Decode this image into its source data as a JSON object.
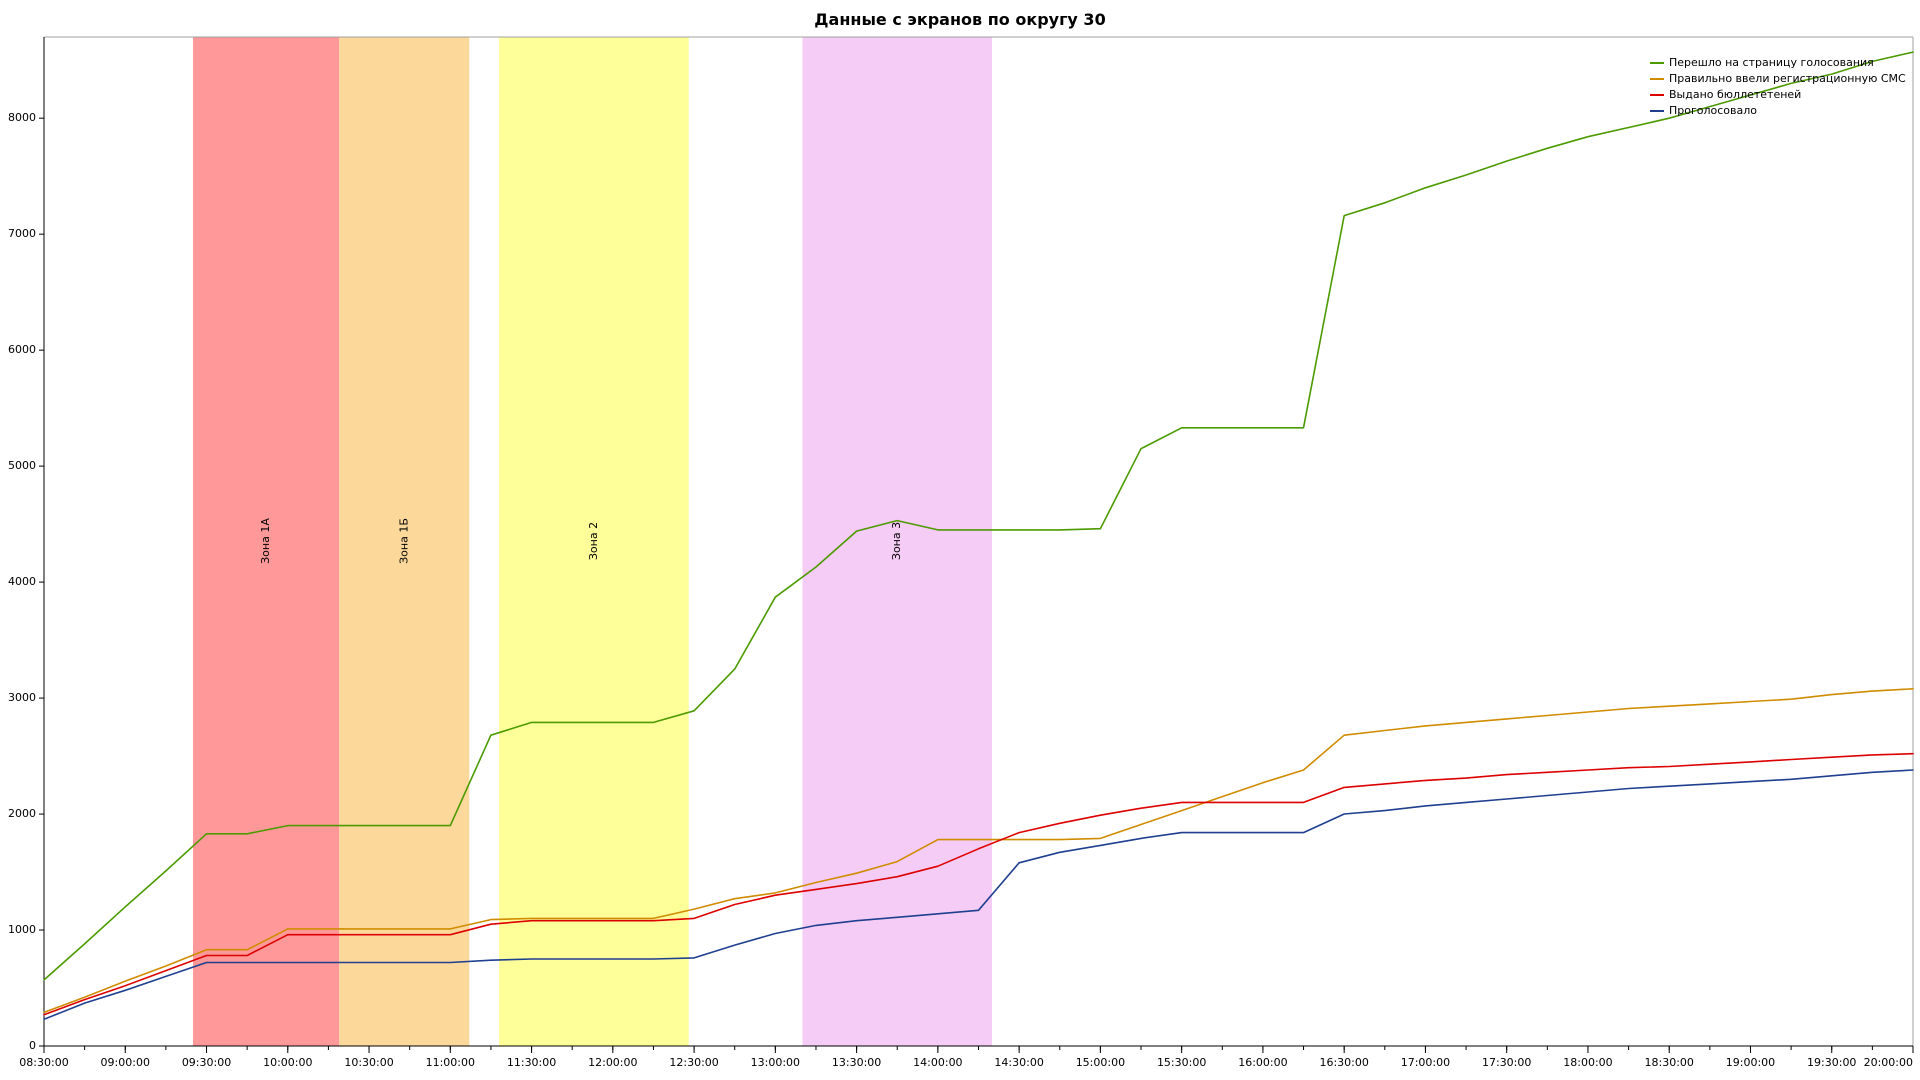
{
  "chart_data": {
    "type": "line",
    "title": "Данные с экранов по округу 30",
    "xlabel": "",
    "ylabel": "",
    "x_time_range": [
      "08:30:00",
      "20:00:00"
    ],
    "x_ticks": [
      "08:30:00",
      "09:00:00",
      "09:30:00",
      "10:00:00",
      "10:30:00",
      "11:00:00",
      "11:30:00",
      "12:00:00",
      "12:30:00",
      "13:00:00",
      "13:30:00",
      "14:00:00",
      "14:30:00",
      "15:00:00",
      "15:30:00",
      "16:00:00",
      "16:30:00",
      "17:00:00",
      "17:30:00",
      "18:00:00",
      "18:30:00",
      "19:00:00",
      "19:30:00",
      "20:00:00"
    ],
    "ylim": [
      0,
      8700
    ],
    "y_ticks": [
      0,
      1000,
      2000,
      3000,
      4000,
      5000,
      6000,
      7000,
      8000
    ],
    "grid": false,
    "legend_position": "top-right",
    "zones": [
      {
        "label": "Зона 1А",
        "start": "09:25:00",
        "end": "10:19:00",
        "color": "#ff9999"
      },
      {
        "label": "Зона 1Б",
        "start": "10:19:00",
        "end": "11:07:00",
        "color": "#fdd89b"
      },
      {
        "label": "Зона 2",
        "start": "11:18:00",
        "end": "12:28:00",
        "color": "#ffff99"
      },
      {
        "label": "Зона 3",
        "start": "13:10:00",
        "end": "14:20:00",
        "color": "#f5ccf5"
      }
    ],
    "series": [
      {
        "name": "Перешло на страницу голосования",
        "color": "#4c9a00",
        "points": [
          [
            "08:30",
            570
          ],
          [
            "08:45",
            880
          ],
          [
            "09:00",
            1200
          ],
          [
            "09:15",
            1510
          ],
          [
            "09:30",
            1830
          ],
          [
            "09:45",
            1830
          ],
          [
            "10:00",
            1900
          ],
          [
            "10:15",
            1900
          ],
          [
            "10:30",
            1900
          ],
          [
            "10:45",
            1900
          ],
          [
            "11:00",
            1900
          ],
          [
            "11:15",
            2680
          ],
          [
            "11:30",
            2790
          ],
          [
            "11:45",
            2790
          ],
          [
            "12:00",
            2790
          ],
          [
            "12:15",
            2790
          ],
          [
            "12:30",
            2890
          ],
          [
            "12:45",
            3250
          ],
          [
            "13:00",
            3870
          ],
          [
            "13:15",
            4130
          ],
          [
            "13:30",
            4440
          ],
          [
            "13:45",
            4530
          ],
          [
            "14:00",
            4450
          ],
          [
            "14:15",
            4450
          ],
          [
            "14:30",
            4450
          ],
          [
            "14:45",
            4450
          ],
          [
            "15:00",
            4460
          ],
          [
            "15:15",
            5150
          ],
          [
            "15:30",
            5330
          ],
          [
            "15:45",
            5330
          ],
          [
            "16:00",
            5330
          ],
          [
            "16:15",
            5330
          ],
          [
            "16:30",
            7160
          ],
          [
            "16:45",
            7270
          ],
          [
            "17:00",
            7400
          ],
          [
            "17:15",
            7510
          ],
          [
            "17:30",
            7630
          ],
          [
            "17:45",
            7740
          ],
          [
            "18:00",
            7840
          ],
          [
            "18:15",
            7920
          ],
          [
            "18:30",
            8000
          ],
          [
            "18:45",
            8100
          ],
          [
            "19:00",
            8200
          ],
          [
            "19:15",
            8300
          ],
          [
            "19:30",
            8380
          ],
          [
            "19:45",
            8490
          ],
          [
            "20:00",
            8570
          ]
        ]
      },
      {
        "name": "Правильно ввели регистрационную СМС",
        "color": "#d08c00",
        "points": [
          [
            "08:30",
            290
          ],
          [
            "08:45",
            420
          ],
          [
            "09:00",
            560
          ],
          [
            "09:15",
            690
          ],
          [
            "09:30",
            830
          ],
          [
            "09:45",
            830
          ],
          [
            "10:00",
            1010
          ],
          [
            "10:15",
            1010
          ],
          [
            "10:30",
            1010
          ],
          [
            "10:45",
            1010
          ],
          [
            "11:00",
            1010
          ],
          [
            "11:15",
            1090
          ],
          [
            "11:30",
            1100
          ],
          [
            "11:45",
            1100
          ],
          [
            "12:00",
            1100
          ],
          [
            "12:15",
            1100
          ],
          [
            "12:30",
            1180
          ],
          [
            "12:45",
            1270
          ],
          [
            "13:00",
            1320
          ],
          [
            "13:15",
            1410
          ],
          [
            "13:30",
            1490
          ],
          [
            "13:45",
            1590
          ],
          [
            "14:00",
            1780
          ],
          [
            "14:15",
            1780
          ],
          [
            "14:30",
            1780
          ],
          [
            "14:45",
            1780
          ],
          [
            "15:00",
            1790
          ],
          [
            "15:15",
            1910
          ],
          [
            "15:30",
            2030
          ],
          [
            "15:45",
            2150
          ],
          [
            "16:00",
            2270
          ],
          [
            "16:15",
            2380
          ],
          [
            "16:30",
            2680
          ],
          [
            "16:45",
            2720
          ],
          [
            "17:00",
            2760
          ],
          [
            "17:15",
            2790
          ],
          [
            "17:30",
            2820
          ],
          [
            "17:45",
            2850
          ],
          [
            "18:00",
            2880
          ],
          [
            "18:15",
            2910
          ],
          [
            "18:30",
            2930
          ],
          [
            "18:45",
            2950
          ],
          [
            "19:00",
            2970
          ],
          [
            "19:15",
            2990
          ],
          [
            "19:30",
            3030
          ],
          [
            "19:45",
            3060
          ],
          [
            "20:00",
            3080
          ]
        ]
      },
      {
        "name": "Выдано бюллететеней",
        "color": "#dd0000",
        "points": [
          [
            "08:30",
            270
          ],
          [
            "08:45",
            400
          ],
          [
            "09:00",
            520
          ],
          [
            "09:15",
            650
          ],
          [
            "09:30",
            780
          ],
          [
            "09:45",
            780
          ],
          [
            "10:00",
            960
          ],
          [
            "10:15",
            960
          ],
          [
            "10:30",
            960
          ],
          [
            "10:45",
            960
          ],
          [
            "11:00",
            960
          ],
          [
            "11:15",
            1050
          ],
          [
            "11:30",
            1080
          ],
          [
            "11:45",
            1080
          ],
          [
            "12:00",
            1080
          ],
          [
            "12:15",
            1080
          ],
          [
            "12:30",
            1100
          ],
          [
            "12:45",
            1220
          ],
          [
            "13:00",
            1300
          ],
          [
            "13:15",
            1350
          ],
          [
            "13:30",
            1400
          ],
          [
            "13:45",
            1460
          ],
          [
            "14:00",
            1550
          ],
          [
            "14:15",
            1700
          ],
          [
            "14:30",
            1840
          ],
          [
            "14:45",
            1920
          ],
          [
            "15:00",
            1990
          ],
          [
            "15:15",
            2050
          ],
          [
            "15:30",
            2100
          ],
          [
            "15:45",
            2100
          ],
          [
            "16:00",
            2100
          ],
          [
            "16:15",
            2100
          ],
          [
            "16:30",
            2230
          ],
          [
            "16:45",
            2260
          ],
          [
            "17:00",
            2290
          ],
          [
            "17:15",
            2310
          ],
          [
            "17:30",
            2340
          ],
          [
            "17:45",
            2360
          ],
          [
            "18:00",
            2380
          ],
          [
            "18:15",
            2400
          ],
          [
            "18:30",
            2410
          ],
          [
            "18:45",
            2430
          ],
          [
            "19:00",
            2450
          ],
          [
            "19:15",
            2470
          ],
          [
            "19:30",
            2490
          ],
          [
            "19:45",
            2510
          ],
          [
            "20:00",
            2520
          ]
        ]
      },
      {
        "name": "Проголосовало",
        "color": "#1f3f8f",
        "points": [
          [
            "08:30",
            230
          ],
          [
            "08:45",
            370
          ],
          [
            "09:00",
            480
          ],
          [
            "09:15",
            600
          ],
          [
            "09:30",
            720
          ],
          [
            "09:45",
            720
          ],
          [
            "10:00",
            720
          ],
          [
            "10:15",
            720
          ],
          [
            "10:30",
            720
          ],
          [
            "10:45",
            720
          ],
          [
            "11:00",
            720
          ],
          [
            "11:15",
            740
          ],
          [
            "11:30",
            750
          ],
          [
            "11:45",
            750
          ],
          [
            "12:00",
            750
          ],
          [
            "12:15",
            750
          ],
          [
            "12:30",
            760
          ],
          [
            "12:45",
            870
          ],
          [
            "13:00",
            970
          ],
          [
            "13:15",
            1040
          ],
          [
            "13:30",
            1080
          ],
          [
            "13:45",
            1110
          ],
          [
            "14:00",
            1140
          ],
          [
            "14:15",
            1170
          ],
          [
            "14:30",
            1580
          ],
          [
            "14:45",
            1670
          ],
          [
            "15:00",
            1730
          ],
          [
            "15:15",
            1790
          ],
          [
            "15:30",
            1840
          ],
          [
            "15:45",
            1840
          ],
          [
            "16:00",
            1840
          ],
          [
            "16:15",
            1840
          ],
          [
            "16:30",
            2000
          ],
          [
            "16:45",
            2030
          ],
          [
            "17:00",
            2070
          ],
          [
            "17:15",
            2100
          ],
          [
            "17:30",
            2130
          ],
          [
            "17:45",
            2160
          ],
          [
            "18:00",
            2190
          ],
          [
            "18:15",
            2220
          ],
          [
            "18:30",
            2240
          ],
          [
            "18:45",
            2260
          ],
          [
            "19:00",
            2280
          ],
          [
            "19:15",
            2300
          ],
          [
            "19:30",
            2330
          ],
          [
            "19:45",
            2360
          ],
          [
            "20:00",
            2380
          ]
        ]
      }
    ]
  }
}
